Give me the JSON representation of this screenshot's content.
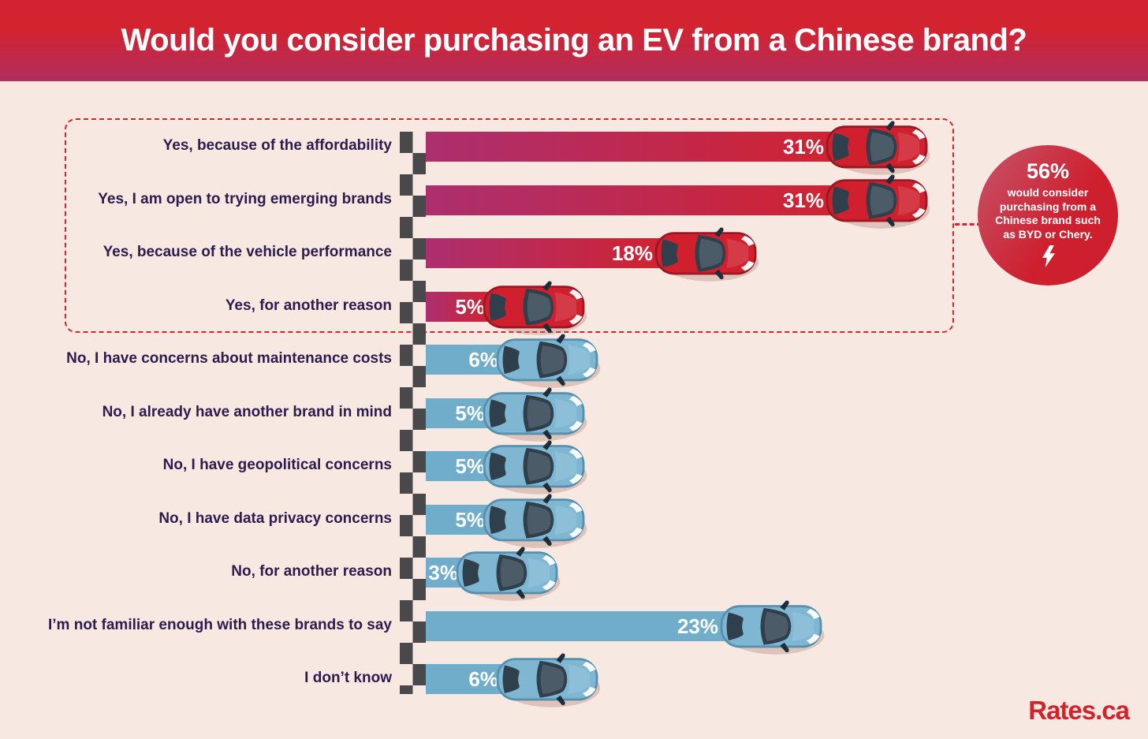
{
  "header": {
    "title": "Would you consider purchasing an EV from a Chinese brand?"
  },
  "chart_data": {
    "type": "bar",
    "orientation": "horizontal",
    "unit": "%",
    "title": "Would you consider purchasing an EV from a Chinese brand?",
    "categories": [
      "Yes, because of the affordability",
      "Yes, I am open to trying emerging brands",
      "Yes, because of the vehicle performance",
      "Yes, for another reason",
      "No, I have concerns about maintenance costs",
      "No, I already have another brand in mind",
      "No, I have geopolitical concerns",
      "No, I have data privacy concerns",
      "No, for another reason",
      "I’m not familiar enough with these brands to say",
      "I don’t know"
    ],
    "values": [
      31,
      31,
      18,
      5,
      6,
      5,
      5,
      5,
      3,
      23,
      6
    ],
    "value_labels": [
      "31%",
      "31%",
      "18%",
      "5%",
      "6%",
      "5%",
      "5%",
      "5%",
      "3%",
      "23%",
      "6%"
    ],
    "series_group": [
      "yes",
      "yes",
      "yes",
      "yes",
      "no",
      "no",
      "no",
      "no",
      "no",
      "neutral",
      "neutral"
    ],
    "xlim": [
      0,
      33
    ],
    "grid": false,
    "legend": null,
    "annotations": {
      "yes_group_highlight": "dashed red box around the four Yes bars"
    }
  },
  "callout": {
    "headline": "56%",
    "body": "would consider purchasing from a Chinese brand such as BYD or Chery.",
    "icon": "lightning-bolt-icon"
  },
  "branding": {
    "logo_text": "Rates.ca"
  },
  "colors": {
    "background": "#f7e9e2",
    "header_gradient_top": "#d32330",
    "header_gradient_bottom": "#b12d5e",
    "yes_bar_start": "#ac2f6f",
    "yes_bar_end": "#d02331",
    "no_bar": "#6fadcb",
    "label_text": "#2d1b4d",
    "value_text": "#ffffff",
    "checker_dark": "#49494b",
    "dashed_border": "#d8232e",
    "callout_gradient_start": "#c5556a",
    "callout_gradient_end": "#ce1f2e",
    "logo_red": "#d2232c",
    "car_red_body": "#d0202e",
    "car_red_edge": "#9c1724",
    "car_blue_body": "#7fb7d3",
    "car_blue_edge": "#5590af",
    "car_glass": "#2f3f4b",
    "car_trim": "#1f2d38",
    "car_shadow": "rgba(171,115,104,0.32)"
  }
}
